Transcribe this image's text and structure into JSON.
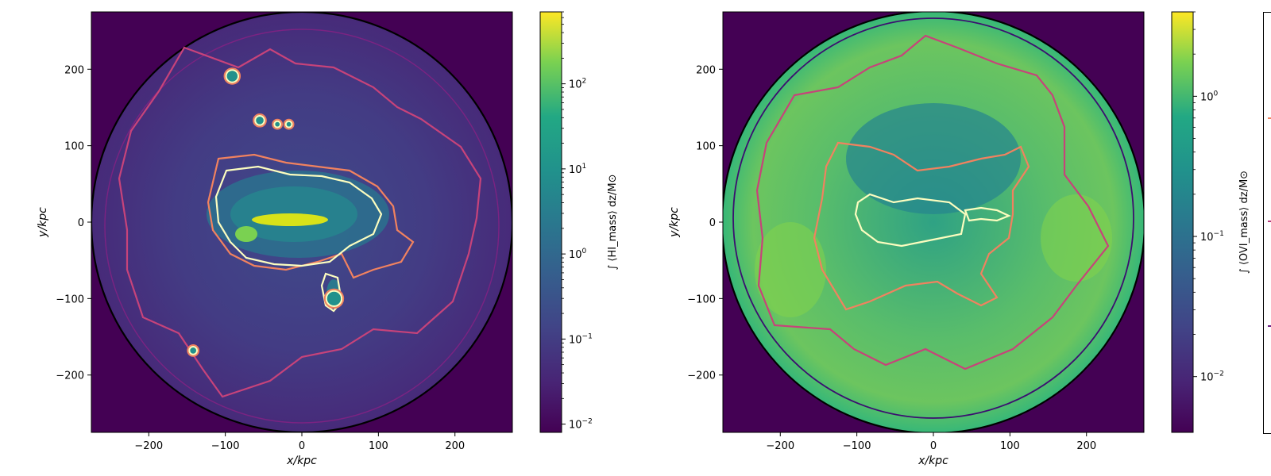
{
  "chart_data": [
    {
      "type": "heatmap",
      "title": "",
      "xlabel": "x/kpc",
      "ylabel": "y/kpc",
      "xlim": [
        -275,
        275
      ],
      "ylim": [
        -275,
        275
      ],
      "x_ticks": [
        "−200",
        "−100",
        "0",
        "100",
        "200"
      ],
      "x_tick_values": [
        -200,
        -100,
        0,
        100,
        200
      ],
      "y_ticks": [
        "−200",
        "−100",
        "0",
        "100",
        "200"
      ],
      "y_tick_values": [
        -200,
        -100,
        0,
        100,
        200
      ],
      "colorbar": {
        "label": "∫ ⟨HI_mass⟩ dz/M⊙",
        "scale": "log",
        "range": [
          0.008,
          700
        ],
        "ticks": [
          {
            "base": "10",
            "exp": "−2",
            "value": 0.01
          },
          {
            "base": "10",
            "exp": "−1",
            "value": 0.1
          },
          {
            "base": "10",
            "exp": "0",
            "value": 1
          },
          {
            "base": "10",
            "exp": "1",
            "value": 10
          },
          {
            "base": "10",
            "exp": "2",
            "value": 100
          }
        ],
        "colormap": "viridis"
      },
      "contours": [
        {
          "color": "#000000",
          "radius": 275
        },
        {
          "color": "#7b2382",
          "radius": 240
        },
        {
          "color": "#c7437a",
          "radius": 195
        },
        {
          "color": "#f1825f",
          "radius": 95
        },
        {
          "color": "#fcfdbf",
          "radius": 80
        }
      ],
      "clumps": [
        {
          "x": -91,
          "y": 191,
          "r": 7
        },
        {
          "x": -55,
          "y": 133,
          "r": 5
        },
        {
          "x": -142,
          "y": -168,
          "r": 4
        },
        {
          "x": 42,
          "y": -100,
          "r": 9
        },
        {
          "x": -32,
          "y": 128,
          "r": 3
        },
        {
          "x": -17,
          "y": 128,
          "r": 3
        }
      ],
      "map_colors": {
        "outside": "#440154",
        "disk": "#3e3d86",
        "center": "#d8e219"
      }
    },
    {
      "type": "heatmap",
      "title": "",
      "xlabel": "x/kpc",
      "ylabel": "y/kpc",
      "xlim": [
        -275,
        275
      ],
      "ylim": [
        -275,
        275
      ],
      "x_ticks": [
        "−200",
        "−100",
        "0",
        "100",
        "200"
      ],
      "x_tick_values": [
        -200,
        -100,
        0,
        100,
        200
      ],
      "y_ticks": [
        "−200",
        "−100",
        "0",
        "100",
        "200"
      ],
      "y_tick_values": [
        -200,
        -100,
        0,
        100,
        200
      ],
      "colorbar": {
        "label": "∫ ⟨OVI_mass⟩ dz/M⊙",
        "scale": "log",
        "range": [
          0.004,
          4
        ],
        "ticks": [
          {
            "base": "10",
            "exp": "−2",
            "value": 0.01
          },
          {
            "base": "10",
            "exp": "−1",
            "value": 0.1
          },
          {
            "base": "10",
            "exp": "0",
            "value": 1
          }
        ],
        "colormap": "viridis"
      },
      "contours": [
        {
          "color": "#000000",
          "radius": 275
        },
        {
          "color": "#3b0f70",
          "radius": 265
        },
        {
          "color": "#c7437a",
          "radius": 200
        },
        {
          "color": "#f1825f",
          "radius": 110
        },
        {
          "color": "#fcfdbf",
          "radius": 60
        }
      ],
      "map_colors": {
        "outside": "#440154",
        "disk": "#2fa284",
        "center": "#84d44b"
      }
    }
  ]
}
